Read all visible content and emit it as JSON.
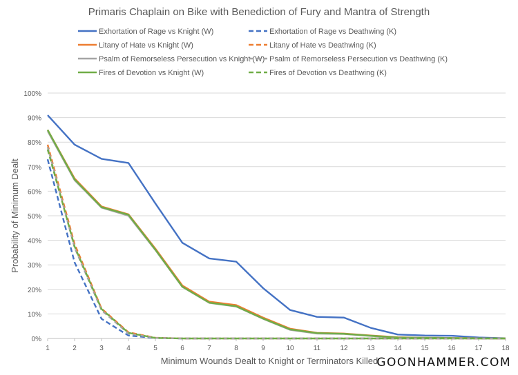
{
  "chart_data": {
    "type": "line",
    "title": "Primaris Chaplain on Bike with Benediction of Fury and Mantra of Strength",
    "xlabel": "Minimum Wounds Dealt to Knight or Terminators Killed",
    "ylabel": "Probability of Minimum Dealt",
    "x": [
      1,
      2,
      3,
      4,
      5,
      6,
      7,
      8,
      9,
      10,
      11,
      12,
      13,
      14,
      15,
      16,
      17,
      18
    ],
    "ylim": [
      0,
      100
    ],
    "yticks": [
      "0%",
      "10%",
      "20%",
      "30%",
      "40%",
      "50%",
      "60%",
      "70%",
      "80%",
      "90%",
      "100%"
    ],
    "grid": true,
    "legend_position": "top",
    "series": [
      {
        "name": "Exhortation of Rage vs Knight (W)",
        "color": "#4472C4",
        "dash": false,
        "values": [
          91,
          79,
          73.2,
          71.5,
          55,
          39,
          32.6,
          31.3,
          20.5,
          11.6,
          8.8,
          8.5,
          4.3,
          1.6,
          1.2,
          1.1,
          0.4,
          0.1
        ]
      },
      {
        "name": "Exhortation of Rage vs Deathwing (K)",
        "color": "#4472C4",
        "dash": true,
        "values": [
          73,
          31,
          8,
          1.2,
          0.2,
          0,
          0,
          0,
          0,
          0,
          0,
          0,
          0,
          0,
          0,
          0,
          0,
          0
        ]
      },
      {
        "name": "Litany of Hate vs Knight (W)",
        "color": "#ED7D31",
        "dash": false,
        "values": [
          85,
          65.2,
          53.8,
          50.6,
          36.6,
          21.6,
          15,
          13.6,
          8.5,
          4,
          2.3,
          2,
          1.2,
          0.5,
          0.3,
          0.2,
          0.1,
          0
        ]
      },
      {
        "name": "Litany of Hate vs Deathwing (K)",
        "color": "#ED7D31",
        "dash": true,
        "values": [
          79,
          38.5,
          12.2,
          2.5,
          0.3,
          0,
          0,
          0,
          0,
          0,
          0,
          0,
          0,
          0,
          0,
          0,
          0,
          0
        ]
      },
      {
        "name": "Psalm of Remorseless Persecution vs Knight (W)",
        "color": "#A5A5A5",
        "dash": false,
        "values": [
          84.5,
          64.5,
          53.3,
          50,
          36,
          21,
          14.5,
          13,
          8,
          3.5,
          2,
          1.8,
          1,
          0.3,
          0.2,
          0.1,
          0,
          0
        ]
      },
      {
        "name": "Psalm of Remorseless Persecution vs Deathwing (K)",
        "color": "#A5A5A5",
        "dash": true,
        "values": [
          78,
          37,
          11.5,
          2,
          0.2,
          0,
          0,
          0,
          0,
          0,
          0,
          0,
          0,
          0,
          0,
          0,
          0,
          0
        ]
      },
      {
        "name": "Fires of Devotion vs Knight (W)",
        "color": "#70AD47",
        "dash": false,
        "values": [
          85,
          64.8,
          53.5,
          50.4,
          36.2,
          21.1,
          14.6,
          13.1,
          8.1,
          3.7,
          2.2,
          1.9,
          1.1,
          0.4,
          0.3,
          0.2,
          0.1,
          0
        ]
      },
      {
        "name": "Fires of Devotion vs Deathwing (K)",
        "color": "#70AD47",
        "dash": true,
        "values": [
          77,
          37.5,
          12,
          2.3,
          0.2,
          0,
          0,
          0,
          0,
          0,
          0,
          0,
          0,
          0,
          0,
          0,
          0,
          0
        ]
      }
    ]
  },
  "watermark": "GOONHAMMER.COM"
}
